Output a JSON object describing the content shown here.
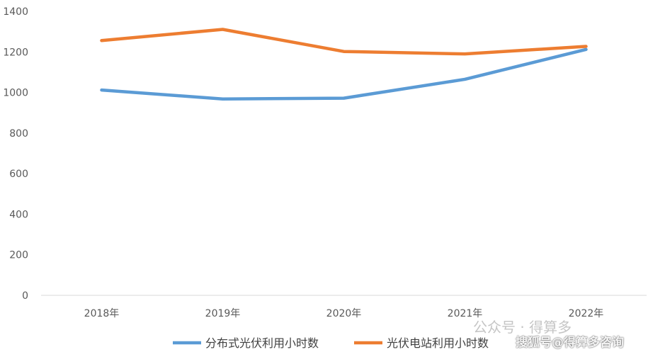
{
  "chart_data": {
    "type": "line",
    "categories": [
      "2018年",
      "2019年",
      "2020年",
      "2021年",
      "2022年"
    ],
    "series": [
      {
        "name": "分布式光伏利用小时数",
        "values": [
          1012,
          968,
          972,
          1065,
          1212
        ],
        "color": "#5B9BD5"
      },
      {
        "name": "光伏电站利用小时数",
        "values": [
          1256,
          1311,
          1202,
          1190,
          1227
        ],
        "color": "#ED7D31"
      }
    ],
    "ylim": [
      0,
      1400
    ],
    "yticks": [
      0,
      200,
      400,
      600,
      800,
      1000,
      1200,
      1400
    ],
    "grid": false,
    "legend": "bottom"
  },
  "watermarks": {
    "wechat": "公众号 · 得算多",
    "sohu": "搜狐号@得算多咨询"
  }
}
